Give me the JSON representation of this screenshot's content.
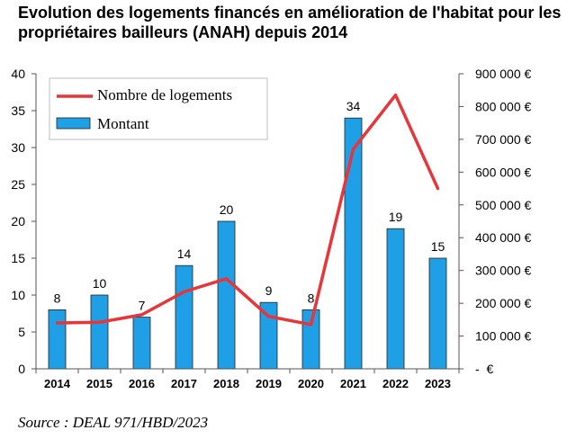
{
  "chart_data": {
    "type": "bar",
    "title": "Evolution des logements financés en amélioration de l'habitat pour les propriétaires bailleurs (ANAH) depuis 2014",
    "categories": [
      "2014",
      "2015",
      "2016",
      "2017",
      "2018",
      "2019",
      "2020",
      "2021",
      "2022",
      "2023"
    ],
    "series": [
      {
        "name": "Nombre de logements",
        "type": "line",
        "axis": "right",
        "color": "#e8353a",
        "values": [
          140000,
          142000,
          165000,
          235000,
          275000,
          160000,
          135000,
          670000,
          835000,
          550000
        ]
      },
      {
        "name": "Montant",
        "type": "bar",
        "axis": "left",
        "color": "#1e9fe6",
        "values": [
          8,
          10,
          7,
          14,
          20,
          9,
          8,
          34,
          19,
          15
        ]
      }
    ],
    "ylim": [
      0,
      40
    ],
    "y_ticks": [
      0,
      5,
      10,
      15,
      20,
      25,
      30,
      35,
      40
    ],
    "y2lim": [
      0,
      900000
    ],
    "y2_ticks": [
      0,
      100000,
      200000,
      300000,
      400000,
      500000,
      600000,
      700000,
      800000,
      900000
    ],
    "y2_tick_labels": [
      "-  €",
      "100 000 €",
      "200 000 €",
      "300 000 €",
      "400 000 €",
      "500 000 €",
      "600 000 €",
      "700 000 €",
      "800 000 €",
      "900 000 €"
    ],
    "grid": false,
    "legend": "top-left",
    "data_labels": true
  },
  "source": "Source : DEAL 971/HBD/2023"
}
